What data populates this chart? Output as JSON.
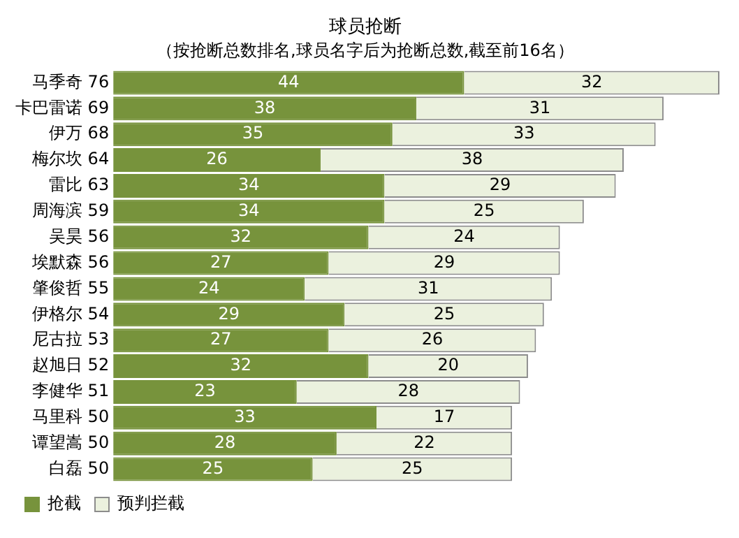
{
  "chart_data": {
    "type": "bar",
    "orientation": "horizontal",
    "stacked": true,
    "title": "球员抢断",
    "subtitle": "（按抢断总数排名,球员名字后为抢断总数,截至前16名）",
    "categories": [
      "马季奇 76",
      "卡巴雷诺 69",
      "伊万 68",
      "梅尔坎 64",
      "雷比 63",
      "周海滨 59",
      "吴昊 56",
      "埃默森 56",
      "肇俊哲 55",
      "伊格尔 54",
      "尼古拉 53",
      "赵旭日 52",
      "李健华 51",
      "马里科 50",
      "谭望嵩 50",
      "白磊 50"
    ],
    "series": [
      {
        "name": "抢截",
        "color": "#77933c",
        "values": [
          44,
          38,
          35,
          26,
          34,
          34,
          32,
          27,
          24,
          29,
          27,
          32,
          23,
          33,
          28,
          25
        ]
      },
      {
        "name": "预判拦截",
        "color": "#ebf1de",
        "values": [
          32,
          31,
          33,
          38,
          29,
          25,
          24,
          29,
          31,
          25,
          26,
          20,
          28,
          17,
          22,
          25
        ]
      }
    ],
    "xlim": [
      0,
      76
    ],
    "tick_labels": "y",
    "data_labels": true,
    "legend": "bottom left",
    "grid": false
  }
}
